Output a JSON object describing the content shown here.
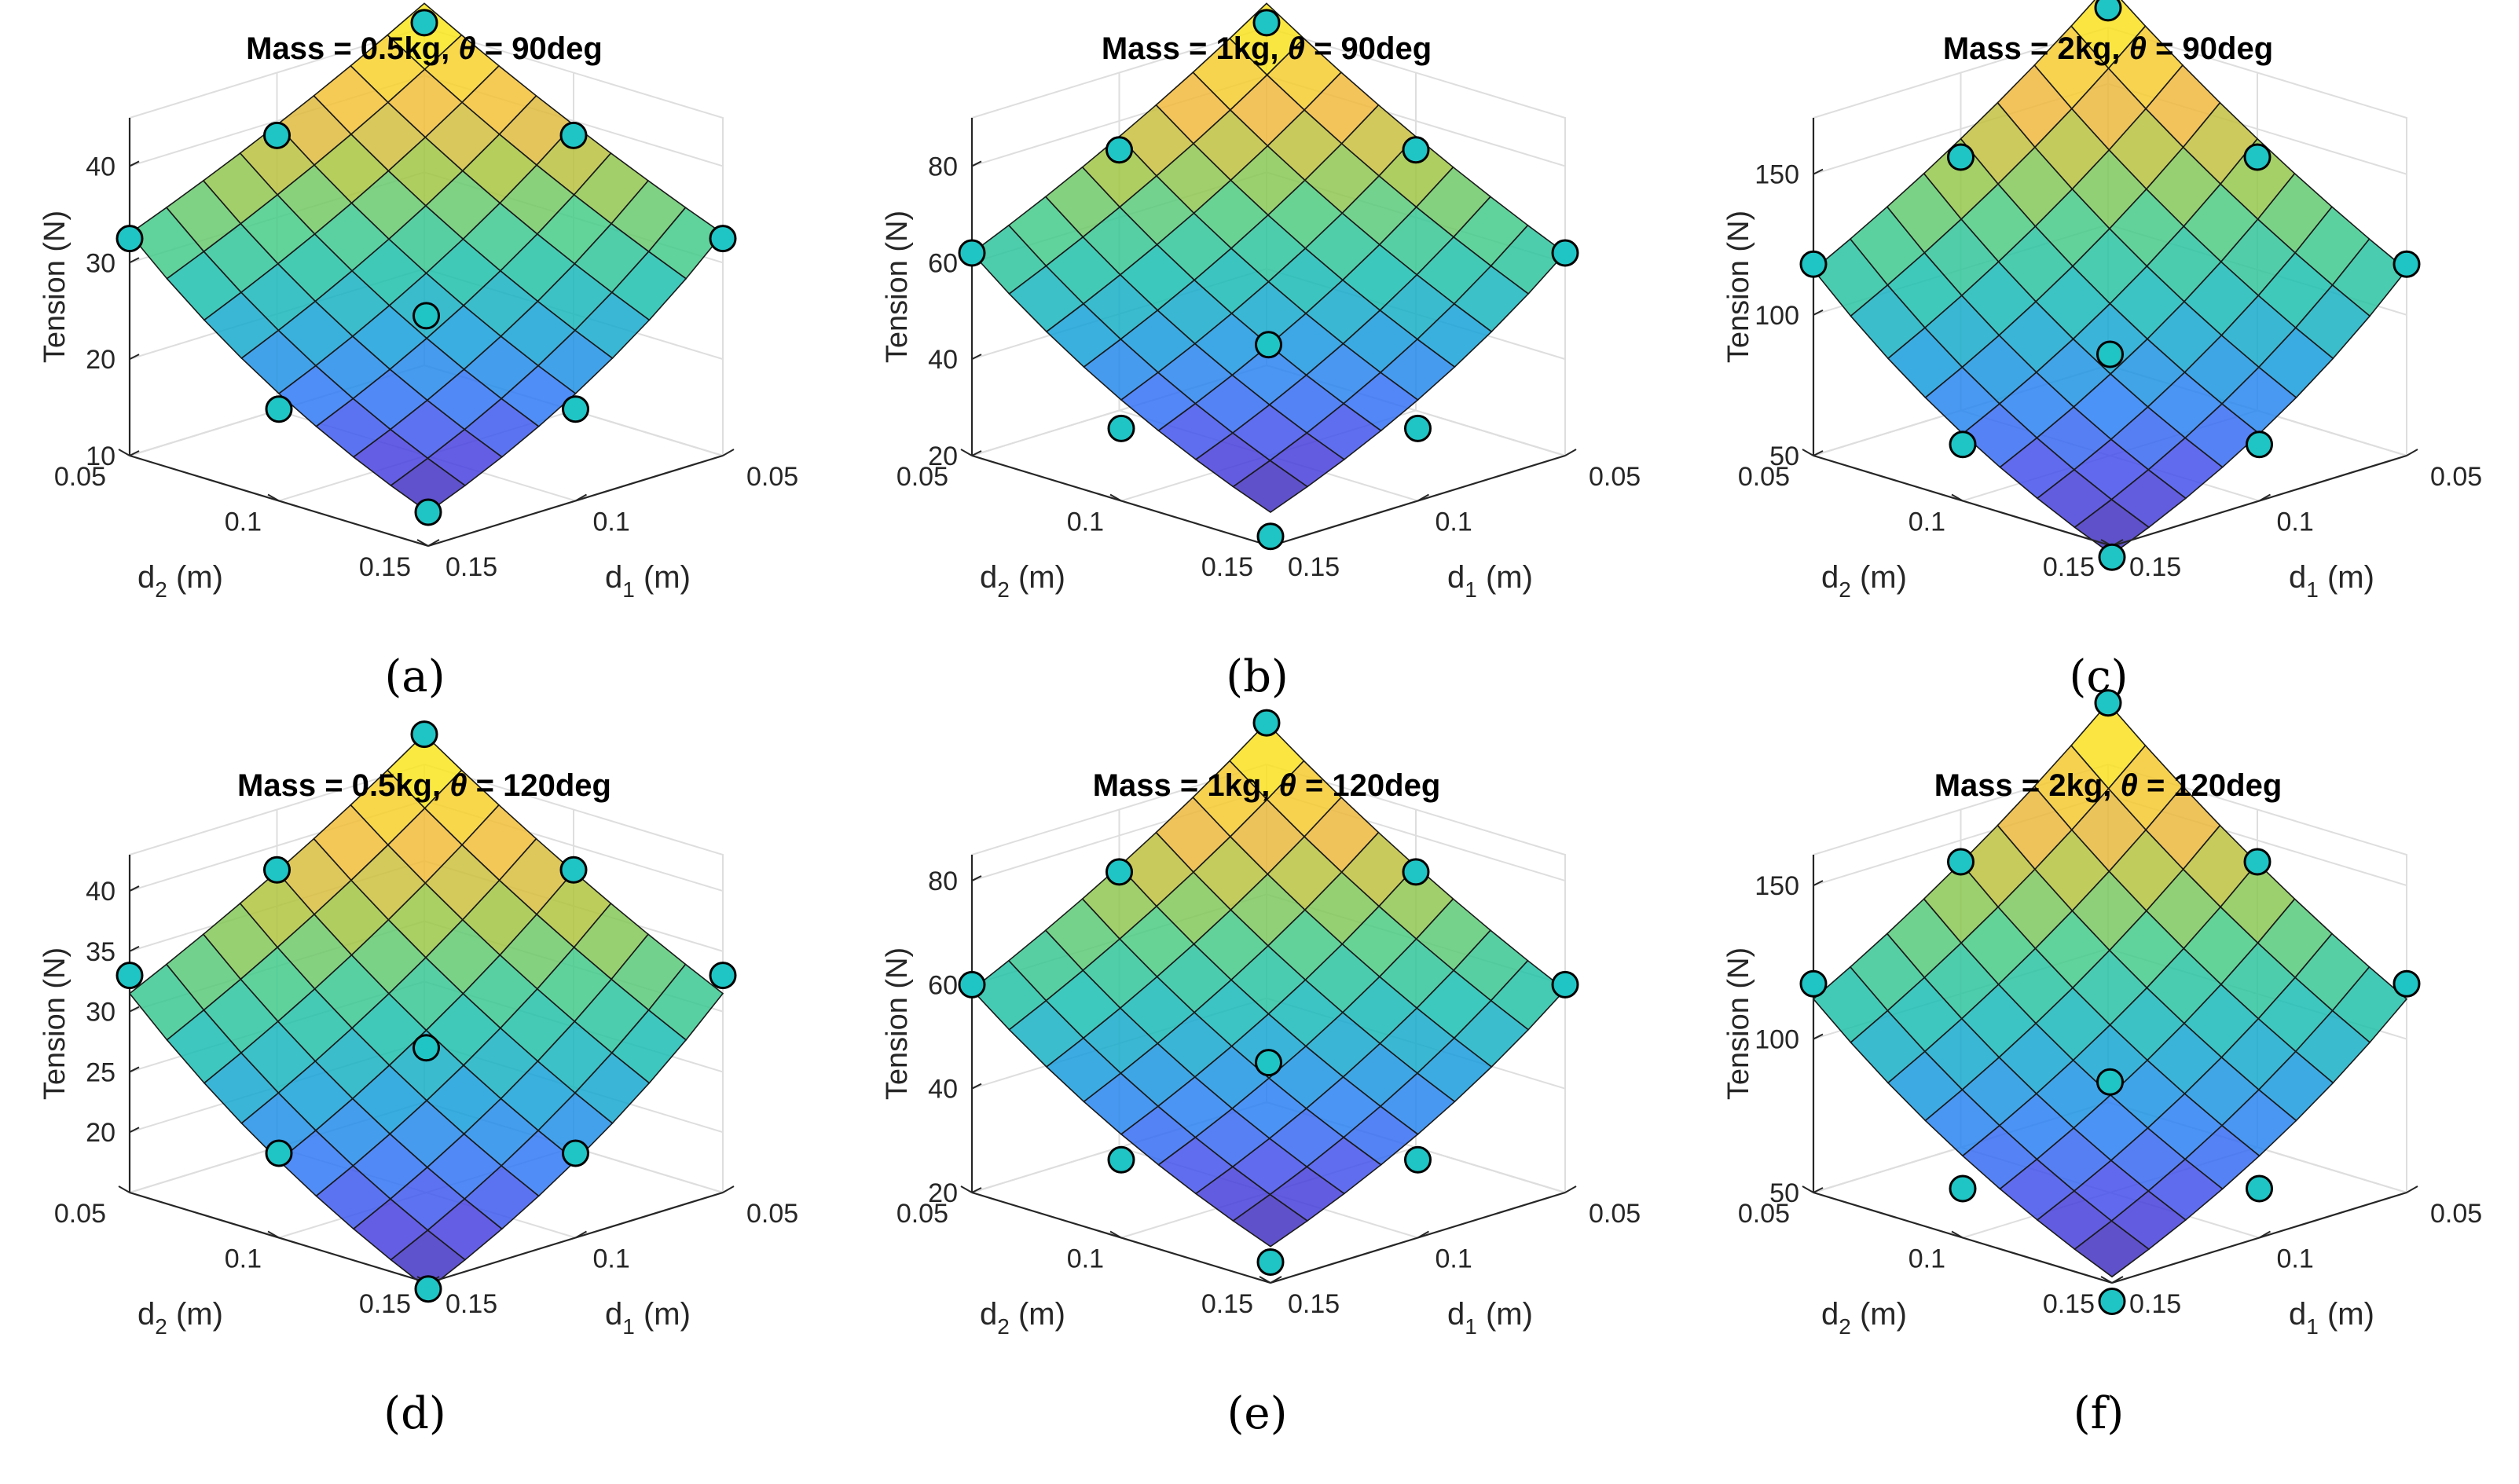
{
  "figure": {
    "ylabel": "Tension (N)",
    "x_tick_labels": [
      "0.05",
      "0.1",
      "0.15"
    ],
    "d1_label": {
      "main": "d",
      "sub": "1",
      "unit": " (m)"
    },
    "d2_label": {
      "main": "d",
      "sub": "2",
      "unit": " (m)"
    }
  },
  "chart_data": [
    {
      "type": "surface",
      "title": {
        "prefix": "Mass = 0.5kg,  ",
        "theta": "θ",
        "suffix": " = 90deg"
      },
      "caption": "(a)",
      "x": [
        0.05,
        0.0625,
        0.075,
        0.0875,
        0.1,
        0.1125,
        0.125,
        0.1375,
        0.15
      ],
      "xlabel": "d1 (m)",
      "ylabel2": "d2 (m)",
      "zlabel": "Tension (N)",
      "zlim": [
        10,
        45
      ],
      "zticks": [
        10,
        20,
        30,
        40
      ],
      "surface_corners": {
        "near": 13.5,
        "mid_d1_edge": 21.5,
        "mid_d2_edge": 21.5,
        "far": 47.5,
        "d1_max_d2_min": 33,
        "d1_min_d2_max": 33
      },
      "points": [
        {
          "d1": 0.05,
          "d2": 0.05,
          "z": 45.5
        },
        {
          "d1": 0.1,
          "d2": 0.05,
          "z": 38.5
        },
        {
          "d1": 0.05,
          "d2": 0.1,
          "z": 38.5
        },
        {
          "d1": 0.15,
          "d2": 0.05,
          "z": 32.5
        },
        {
          "d1": 0.05,
          "d2": 0.15,
          "z": 32.5
        },
        {
          "d1": 0.1,
          "d2": 0.1,
          "z": 24.5
        },
        {
          "d1": 0.15,
          "d2": 0.1,
          "z": 19.5
        },
        {
          "d1": 0.1,
          "d2": 0.15,
          "z": 19.5
        },
        {
          "d1": 0.15,
          "d2": 0.15,
          "z": 13.5
        }
      ]
    },
    {
      "type": "surface",
      "title": {
        "prefix": "Mass = 1kg,  ",
        "theta": "θ",
        "suffix": " = 90deg"
      },
      "caption": "(b)",
      "x": [
        0.05,
        0.0625,
        0.075,
        0.0875,
        0.1,
        0.1125,
        0.125,
        0.1375,
        0.15
      ],
      "xlabel": "d1 (m)",
      "ylabel2": "d2 (m)",
      "zlabel": "Tension (N)",
      "zlim": [
        20,
        90
      ],
      "zticks": [
        20,
        40,
        60,
        80
      ],
      "surface_corners": {
        "near": 27,
        "mid_d1_edge": 43,
        "mid_d2_edge": 43,
        "far": 95,
        "d1_max_d2_min": 62,
        "d1_min_d2_max": 62
      },
      "points": [
        {
          "d1": 0.05,
          "d2": 0.05,
          "z": 91
        },
        {
          "d1": 0.1,
          "d2": 0.05,
          "z": 74
        },
        {
          "d1": 0.05,
          "d2": 0.1,
          "z": 74
        },
        {
          "d1": 0.15,
          "d2": 0.05,
          "z": 62
        },
        {
          "d1": 0.05,
          "d2": 0.15,
          "z": 62
        },
        {
          "d1": 0.1,
          "d2": 0.1,
          "z": 43
        },
        {
          "d1": 0.15,
          "d2": 0.1,
          "z": 35
        },
        {
          "d1": 0.1,
          "d2": 0.15,
          "z": 35
        },
        {
          "d1": 0.15,
          "d2": 0.15,
          "z": 22
        }
      ]
    },
    {
      "type": "surface",
      "title": {
        "prefix": "Mass = 2kg,  ",
        "theta": "θ",
        "suffix": " = 90deg"
      },
      "caption": "(c)",
      "x": [
        0.05,
        0.0625,
        0.075,
        0.0875,
        0.1,
        0.1125,
        0.125,
        0.1375,
        0.15
      ],
      "xlabel": "d1 (m)",
      "ylabel2": "d2 (m)",
      "zlabel": "Tension (N)",
      "zlim": [
        50,
        170
      ],
      "zticks": [
        50,
        100,
        150
      ],
      "surface_corners": {
        "near": 47,
        "mid_d1_edge": 80,
        "mid_d2_edge": 80,
        "far": 185,
        "d1_max_d2_min": 116,
        "d1_min_d2_max": 116
      },
      "points": [
        {
          "d1": 0.05,
          "d2": 0.05,
          "z": 177
        },
        {
          "d1": 0.1,
          "d2": 0.05,
          "z": 140
        },
        {
          "d1": 0.05,
          "d2": 0.1,
          "z": 140
        },
        {
          "d1": 0.15,
          "d2": 0.05,
          "z": 118
        },
        {
          "d1": 0.05,
          "d2": 0.15,
          "z": 118
        },
        {
          "d1": 0.1,
          "d2": 0.1,
          "z": 86
        },
        {
          "d1": 0.15,
          "d2": 0.1,
          "z": 70
        },
        {
          "d1": 0.1,
          "d2": 0.15,
          "z": 70
        },
        {
          "d1": 0.15,
          "d2": 0.15,
          "z": 46
        }
      ]
    },
    {
      "type": "surface",
      "title": {
        "prefix": "Mass = 0.5kg,  ",
        "theta": "θ",
        "suffix": " = 120deg"
      },
      "caption": "(d)",
      "x": [
        0.05,
        0.0625,
        0.075,
        0.0875,
        0.1,
        0.1125,
        0.125,
        0.1375,
        0.15
      ],
      "xlabel": "d1 (m)",
      "ylabel2": "d2 (m)",
      "zlabel": "Tension (N)",
      "zlim": [
        15,
        43
      ],
      "zticks": [
        20,
        25,
        30,
        35,
        40
      ],
      "surface_corners": {
        "near": 14.5,
        "mid_d1_edge": 24.5,
        "mid_d2_edge": 24.5,
        "far": 45.5,
        "d1_max_d2_min": 31.5,
        "d1_min_d2_max": 31.5
      },
      "points": [
        {
          "d1": 0.05,
          "d2": 0.05,
          "z": 45.5
        },
        {
          "d1": 0.1,
          "d2": 0.05,
          "z": 38
        },
        {
          "d1": 0.05,
          "d2": 0.1,
          "z": 38
        },
        {
          "d1": 0.15,
          "d2": 0.05,
          "z": 33
        },
        {
          "d1": 0.05,
          "d2": 0.15,
          "z": 33
        },
        {
          "d1": 0.1,
          "d2": 0.1,
          "z": 27
        },
        {
          "d1": 0.15,
          "d2": 0.1,
          "z": 22
        },
        {
          "d1": 0.1,
          "d2": 0.15,
          "z": 22
        },
        {
          "d1": 0.15,
          "d2": 0.15,
          "z": 14.5
        }
      ]
    },
    {
      "type": "surface",
      "title": {
        "prefix": "Mass = 1kg,  ",
        "theta": "θ",
        "suffix": " = 120deg"
      },
      "caption": "(e)",
      "x": [
        0.05,
        0.0625,
        0.075,
        0.0875,
        0.1,
        0.1125,
        0.125,
        0.1375,
        0.15
      ],
      "xlabel": "d1 (m)",
      "ylabel2": "d2 (m)",
      "zlabel": "Tension (N)",
      "zlim": [
        20,
        85
      ],
      "zticks": [
        20,
        40,
        60,
        80
      ],
      "surface_corners": {
        "near": 27,
        "mid_d1_edge": 45,
        "mid_d2_edge": 45,
        "far": 93,
        "d1_max_d2_min": 59,
        "d1_min_d2_max": 59
      },
      "points": [
        {
          "d1": 0.05,
          "d2": 0.05,
          "z": 93
        },
        {
          "d1": 0.1,
          "d2": 0.05,
          "z": 73
        },
        {
          "d1": 0.05,
          "d2": 0.1,
          "z": 73
        },
        {
          "d1": 0.15,
          "d2": 0.05,
          "z": 60
        },
        {
          "d1": 0.05,
          "d2": 0.15,
          "z": 60
        },
        {
          "d1": 0.1,
          "d2": 0.1,
          "z": 45
        },
        {
          "d1": 0.15,
          "d2": 0.1,
          "z": 35
        },
        {
          "d1": 0.1,
          "d2": 0.15,
          "z": 35
        },
        {
          "d1": 0.15,
          "d2": 0.15,
          "z": 24
        }
      ]
    },
    {
      "type": "surface",
      "title": {
        "prefix": "Mass = 2kg,  ",
        "theta": "θ",
        "suffix": " = 120deg"
      },
      "caption": "(f)",
      "x": [
        0.05,
        0.0625,
        0.075,
        0.0875,
        0.1,
        0.1125,
        0.125,
        0.1375,
        0.15
      ],
      "xlabel": "d1 (m)",
      "ylabel2": "d2 (m)",
      "zlabel": "Tension (N)",
      "zlim": [
        50,
        160
      ],
      "zticks": [
        50,
        100,
        150
      ],
      "surface_corners": {
        "near": 52,
        "mid_d1_edge": 86,
        "mid_d2_edge": 86,
        "far": 180,
        "d1_max_d2_min": 113,
        "d1_min_d2_max": 113
      },
      "points": [
        {
          "d1": 0.05,
          "d2": 0.05,
          "z": 180
        },
        {
          "d1": 0.1,
          "d2": 0.05,
          "z": 143
        },
        {
          "d1": 0.05,
          "d2": 0.1,
          "z": 143
        },
        {
          "d1": 0.15,
          "d2": 0.05,
          "z": 118
        },
        {
          "d1": 0.05,
          "d2": 0.15,
          "z": 118
        },
        {
          "d1": 0.1,
          "d2": 0.1,
          "z": 86
        },
        {
          "d1": 0.15,
          "d2": 0.1,
          "z": 66
        },
        {
          "d1": 0.1,
          "d2": 0.15,
          "z": 66
        },
        {
          "d1": 0.15,
          "d2": 0.15,
          "z": 44
        }
      ]
    }
  ],
  "colors": {
    "marker_fill": "#1fc4c4",
    "marker_stroke": "#000000",
    "grid": "#dedede",
    "axis": "#262626",
    "colormap": [
      "#3e26a8",
      "#4a46e8",
      "#2f7cf7",
      "#16a2d8",
      "#1bbfb0",
      "#48cb86",
      "#a6c640",
      "#f0b83d",
      "#f9d628",
      "#f9fb0e"
    ]
  }
}
